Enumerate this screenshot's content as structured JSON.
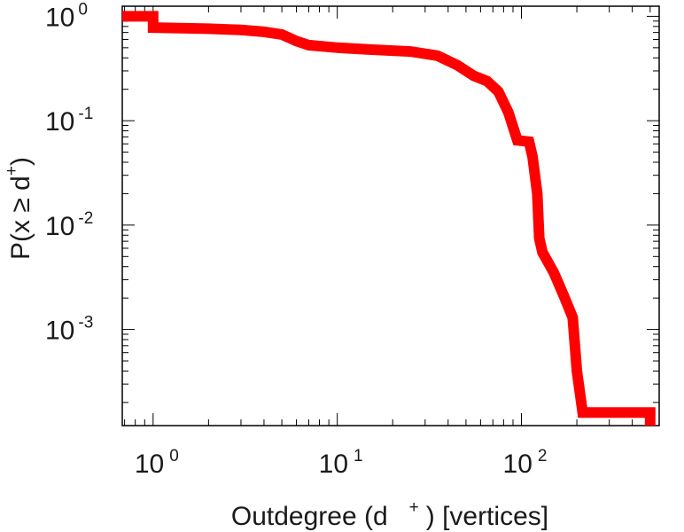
{
  "chart_data": {
    "type": "line",
    "title": "",
    "xlabel": {
      "prefix": "Outdegree (d",
      "sup": "+",
      "suffix": ") [vertices]"
    },
    "ylabel": {
      "prefix": "P(x ≥ d",
      "sup": "+",
      "suffix": ")"
    },
    "xscale": "log",
    "yscale": "log",
    "xlim": [
      0.68,
      560
    ],
    "ylim": [
      0.00012,
      1.25
    ],
    "grid": false,
    "legend": "none",
    "series_color": "#ff0000",
    "x_ticks": [
      {
        "base": "10",
        "exp": "0",
        "value": 1
      },
      {
        "base": "10",
        "exp": "1",
        "value": 10
      },
      {
        "base": "10",
        "exp": "2",
        "value": 100
      }
    ],
    "y_ticks": [
      {
        "base": "10",
        "exp": "0",
        "value": 1
      },
      {
        "base": "10",
        "exp": "-1",
        "value": 0.1
      },
      {
        "base": "10",
        "exp": "-2",
        "value": 0.01
      },
      {
        "base": "10",
        "exp": "-3",
        "value": 0.001
      }
    ],
    "series": [
      {
        "name": "",
        "points": [
          [
            0.68,
            1.0
          ],
          [
            1.0,
            1.0
          ],
          [
            1.0,
            0.78
          ],
          [
            2.0,
            0.76
          ],
          [
            3.0,
            0.74
          ],
          [
            4.0,
            0.71
          ],
          [
            5.0,
            0.67
          ],
          [
            6.0,
            0.58
          ],
          [
            7.0,
            0.53
          ],
          [
            10.0,
            0.5
          ],
          [
            15.0,
            0.48
          ],
          [
            25.0,
            0.46
          ],
          [
            35.0,
            0.42
          ],
          [
            45.0,
            0.34
          ],
          [
            55.0,
            0.27
          ],
          [
            65.0,
            0.24
          ],
          [
            75.0,
            0.19
          ],
          [
            85.0,
            0.12
          ],
          [
            95.0,
            0.065
          ],
          [
            110.0,
            0.063
          ],
          [
            115.0,
            0.045
          ],
          [
            122.0,
            0.02
          ],
          [
            125.0,
            0.0075
          ],
          [
            130.0,
            0.0055
          ],
          [
            150.0,
            0.0035
          ],
          [
            170.0,
            0.0021
          ],
          [
            190.0,
            0.0013
          ],
          [
            200.0,
            0.0004
          ],
          [
            215.0,
            0.00016
          ],
          [
            500.0,
            0.00016
          ],
          [
            500.0,
            0.00012
          ]
        ]
      }
    ]
  }
}
